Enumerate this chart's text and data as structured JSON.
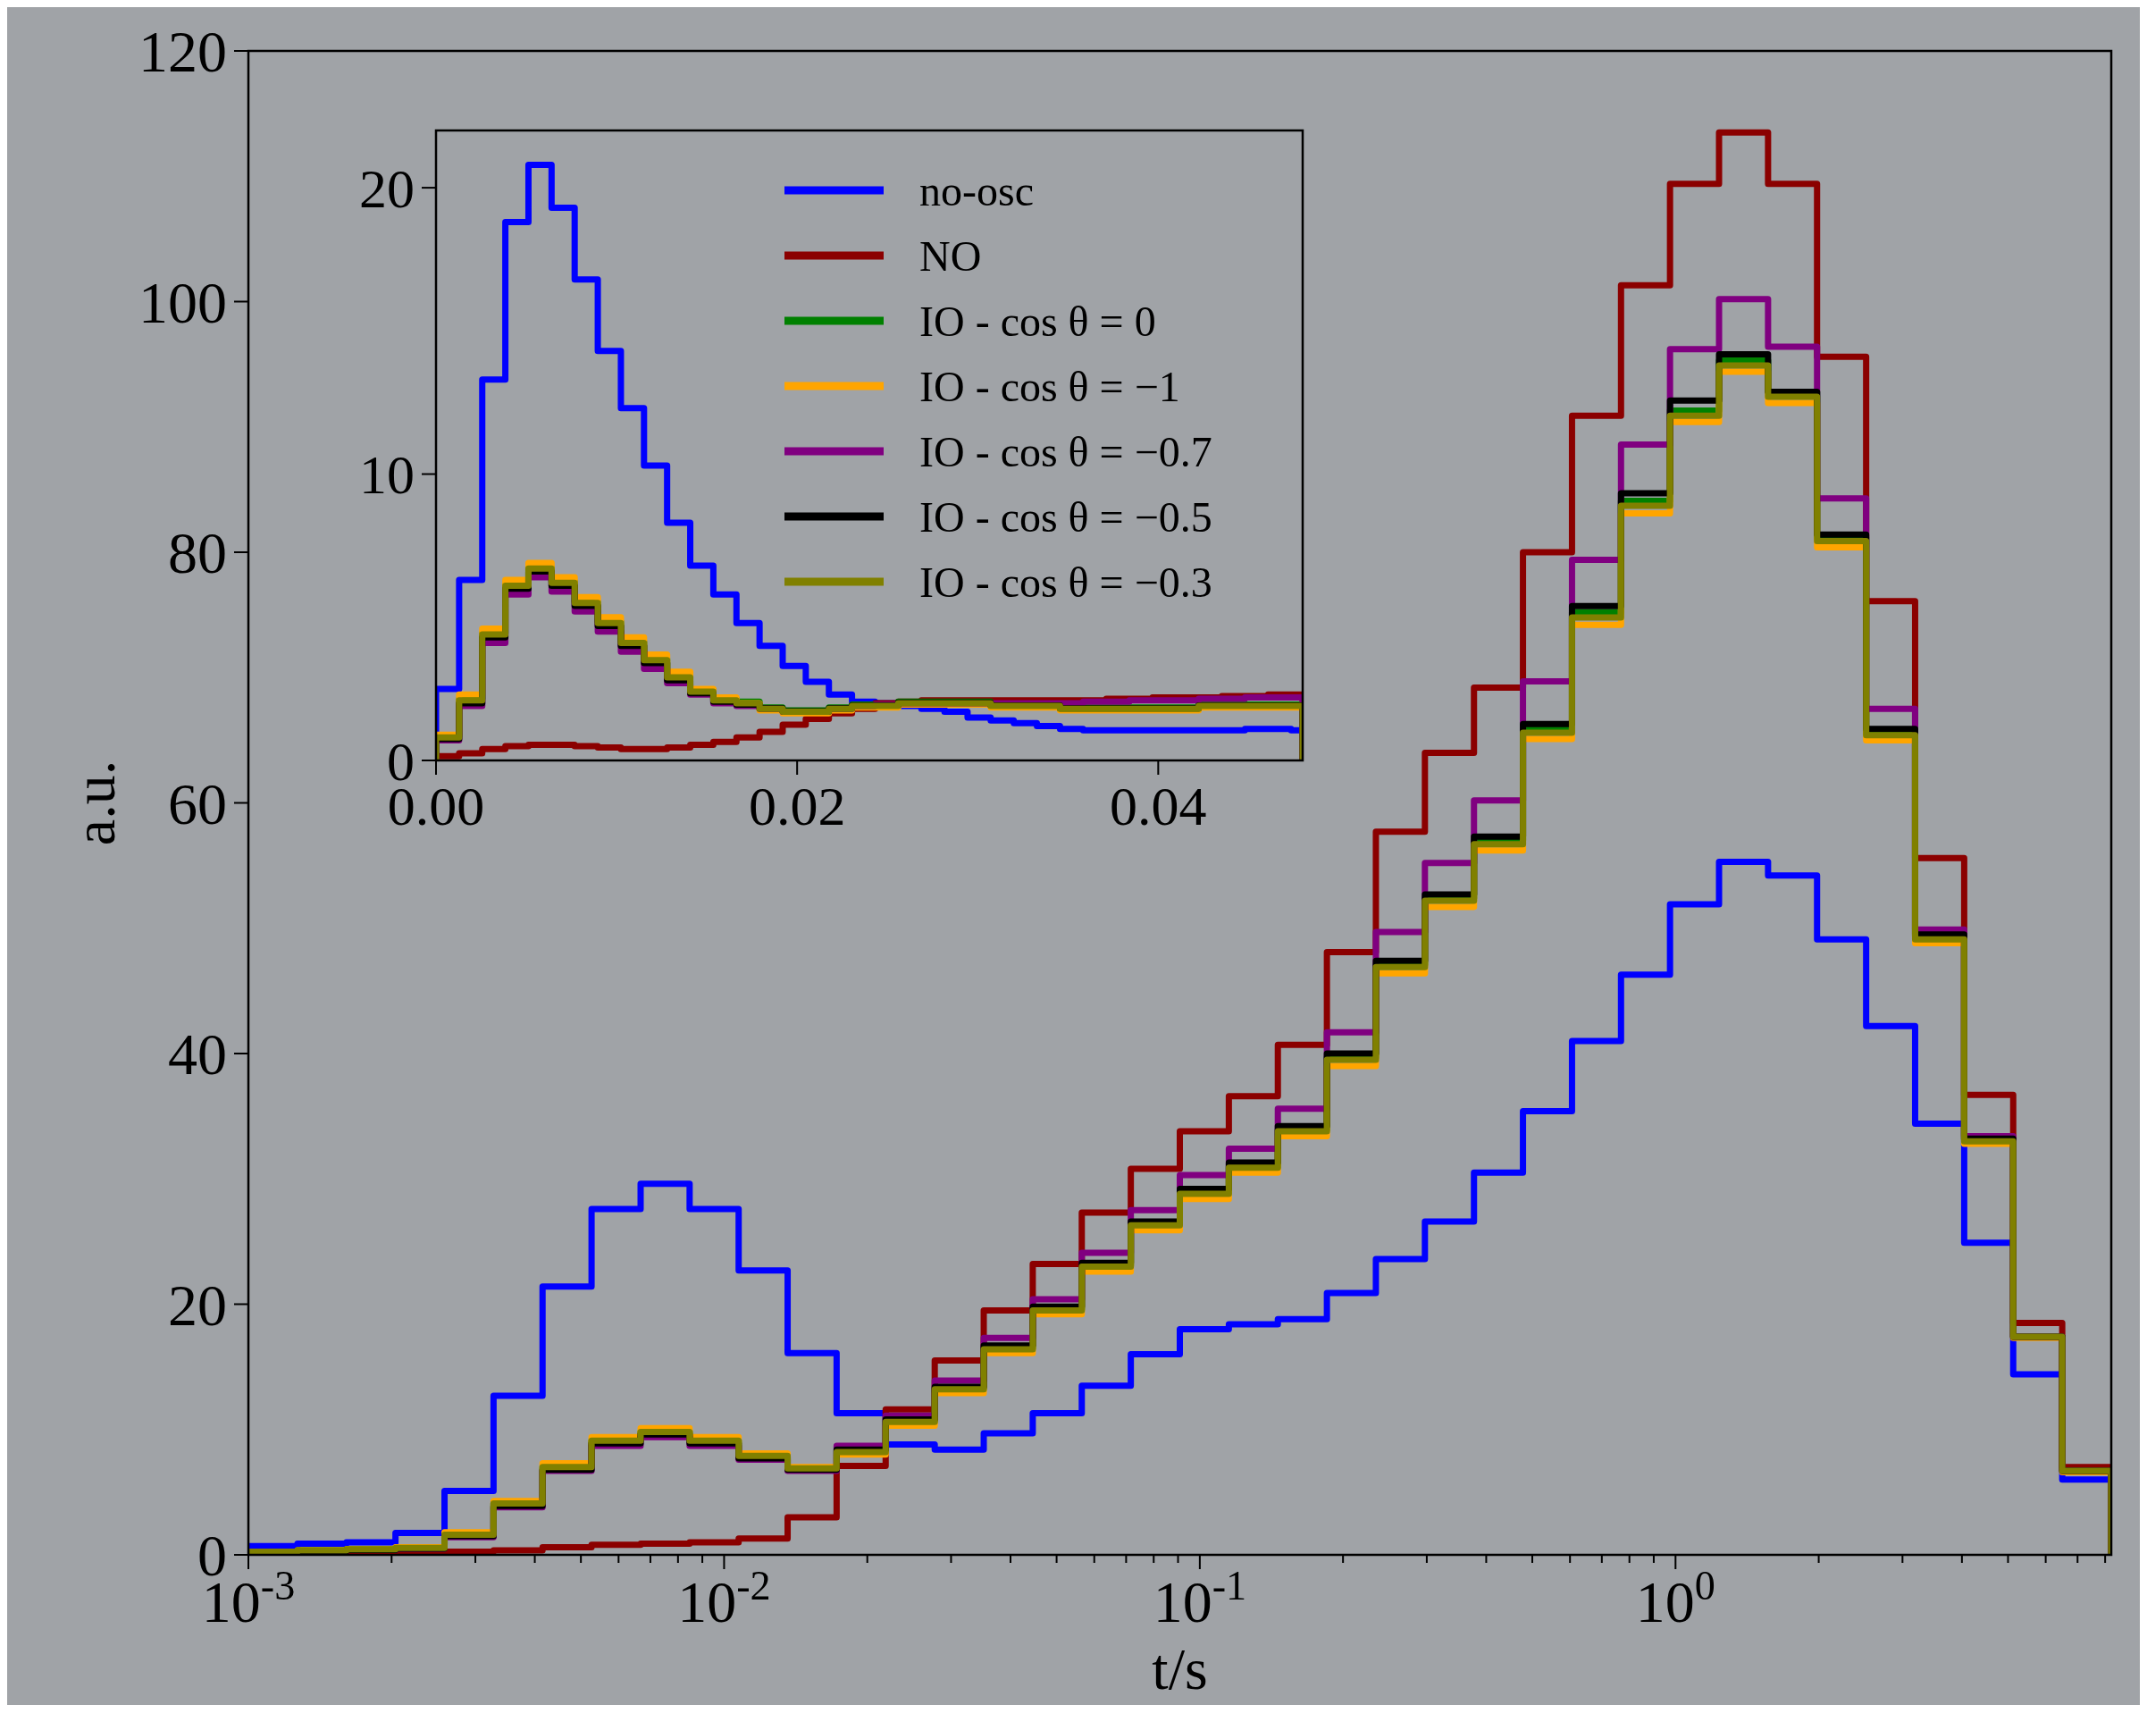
{
  "chart_data": [
    {
      "type": "histogram",
      "xlabel": "t/s",
      "ylabel": "a.u.",
      "log": "x",
      "legend": false,
      "bins": [
        0.001,
        0.001268,
        0.001607,
        0.002038,
        0.002584,
        0.003276,
        0.004153,
        0.005265,
        0.006676,
        0.008463,
        0.01073,
        0.0136,
        0.01724,
        0.02186,
        0.02772,
        0.03514,
        0.04455,
        0.05648,
        0.07161,
        0.09078,
        0.1151,
        0.1459,
        0.185,
        0.2345,
        0.2973,
        0.377,
        0.4779,
        0.6059,
        0.7681,
        0.9737,
        1.2345,
        1.565,
        1.984,
        2.516,
        3.189,
        4.044,
        5.127,
        6.5,
        8.241
      ],
      "xlim": [
        0.001,
        8.241
      ],
      "xticks": [
        {
          "value": 0.001,
          "label": "10$^{-3}$"
        },
        {
          "value": 0.002,
          "label": null
        },
        {
          "value": 0.003,
          "label": null
        },
        {
          "value": 0.004,
          "label": null
        },
        {
          "value": 0.005,
          "label": null
        },
        {
          "value": 0.006,
          "label": null
        },
        {
          "value": 0.007,
          "label": null
        },
        {
          "value": 0.008,
          "label": null
        },
        {
          "value": 0.009,
          "label": null
        },
        {
          "value": 0.01,
          "label": "10$^{-2}$"
        },
        {
          "value": 0.02,
          "label": null
        },
        {
          "value": 0.03,
          "label": null
        },
        {
          "value": 0.04,
          "label": null
        },
        {
          "value": 0.05,
          "label": null
        },
        {
          "value": 0.06,
          "label": null
        },
        {
          "value": 0.07,
          "label": null
        },
        {
          "value": 0.08,
          "label": null
        },
        {
          "value": 0.09,
          "label": null
        },
        {
          "value": 0.1,
          "label": "10$^{-1}$"
        },
        {
          "value": 0.2,
          "label": null
        },
        {
          "value": 0.3,
          "label": null
        },
        {
          "value": 0.4,
          "label": null
        },
        {
          "value": 0.5,
          "label": null
        },
        {
          "value": 0.6,
          "label": null
        },
        {
          "value": 0.7,
          "label": null
        },
        {
          "value": 0.8,
          "label": null
        },
        {
          "value": 0.9,
          "label": null
        },
        {
          "value": 1,
          "label": "10$^{0}$"
        },
        {
          "value": 2,
          "label": null
        },
        {
          "value": 3,
          "label": null
        },
        {
          "value": 4,
          "label": null
        },
        {
          "value": 5,
          "label": null
        },
        {
          "value": 6,
          "label": null
        },
        {
          "value": 7,
          "label": null
        },
        {
          "value": 8,
          "label": null
        }
      ],
      "ylim": [
        0,
        120
      ],
      "yticks": [
        0,
        20,
        40,
        60,
        80,
        100,
        120
      ],
      "series": [
        {
          "color": "#0000ff",
          "values": [
            0.7,
            0.9,
            1.0,
            1.75,
            5.1,
            12.7,
            21.4,
            27.6,
            29.6,
            27.6,
            22.7,
            16.1,
            11.3,
            8.8,
            8.4,
            9.7,
            11.3,
            13.5,
            16.0,
            18.0,
            18.4,
            18.8,
            20.9,
            23.6,
            26.6,
            30.5,
            35.4,
            41.0,
            46.3,
            51.9,
            55.3,
            54.2,
            49.1,
            42.2,
            34.4,
            24.9,
            14.4,
            6.0
          ]
        },
        {
          "color": "#8b0000",
          "values": [
            0.1,
            0.1,
            0.15,
            0.2,
            0.25,
            0.35,
            0.6,
            0.8,
            0.9,
            1.0,
            1.3,
            3.0,
            7.1,
            11.6,
            15.5,
            19.5,
            23.2,
            27.3,
            30.8,
            33.8,
            36.6,
            40.7,
            48.1,
            57.7,
            64.0,
            69.2,
            80.0,
            90.9,
            101.3,
            109.4,
            113.5,
            109.4,
            95.6,
            76.1,
            55.6,
            36.7,
            18.5,
            7.0
          ]
        },
        {
          "color": "#008000",
          "values": [
            0.25,
            0.35,
            0.45,
            0.55,
            1.6,
            4.1,
            7.0,
            9.1,
            9.8,
            9.1,
            7.9,
            6.9,
            8.3,
            10.7,
            13.3,
            16.5,
            19.6,
            23.1,
            26.4,
            28.9,
            31.0,
            33.9,
            39.7,
            47.1,
            52.4,
            57.0,
            65.9,
            75.2,
            84.1,
            91.3,
            95.3,
            92.8,
            81.2,
            65.7,
            49.3,
            33.1,
            17.4,
            6.7
          ]
        },
        {
          "color": "#ffa500",
          "values": [
            0.25,
            0.35,
            0.45,
            0.6,
            1.8,
            4.3,
            7.3,
            9.4,
            10.1,
            9.4,
            8.1,
            7.0,
            8.0,
            10.3,
            12.9,
            16.1,
            19.2,
            22.6,
            25.9,
            28.4,
            30.5,
            33.4,
            39.0,
            46.4,
            51.7,
            56.2,
            65.1,
            74.2,
            83.1,
            90.4,
            94.4,
            91.9,
            80.4,
            65.0,
            48.8,
            32.8,
            17.3,
            6.6
          ]
        },
        {
          "color": "#800080",
          "values": [
            0.2,
            0.3,
            0.4,
            0.5,
            1.4,
            3.8,
            6.7,
            8.7,
            9.4,
            8.7,
            7.6,
            6.7,
            8.7,
            11.1,
            13.9,
            17.3,
            20.4,
            24.1,
            27.5,
            30.3,
            32.4,
            35.6,
            41.7,
            49.7,
            55.2,
            60.2,
            69.7,
            79.4,
            88.6,
            96.2,
            100.2,
            96.4,
            84.3,
            67.5,
            49.9,
            33.4,
            17.4,
            6.7
          ]
        },
        {
          "color": "#000000",
          "values": [
            0.2,
            0.3,
            0.4,
            0.5,
            1.5,
            3.9,
            6.8,
            8.9,
            9.6,
            8.9,
            7.7,
            6.8,
            8.4,
            10.8,
            13.4,
            16.7,
            19.8,
            23.3,
            26.6,
            29.2,
            31.3,
            34.2,
            40.0,
            47.4,
            52.7,
            57.3,
            66.3,
            75.7,
            84.7,
            92.1,
            95.8,
            92.8,
            81.4,
            65.9,
            49.5,
            33.2,
            17.4,
            6.7
          ]
        },
        {
          "color": "#808000",
          "values": [
            0.25,
            0.35,
            0.45,
            0.55,
            1.6,
            4.1,
            7.0,
            9.1,
            9.8,
            9.1,
            7.9,
            6.9,
            8.2,
            10.6,
            13.2,
            16.4,
            19.5,
            23.0,
            26.3,
            28.8,
            30.9,
            33.8,
            39.5,
            46.9,
            52.2,
            56.7,
            65.6,
            74.8,
            83.7,
            90.9,
            94.9,
            92.4,
            80.9,
            65.4,
            49.1,
            33.0,
            17.4,
            6.7
          ]
        }
      ]
    },
    {
      "type": "histogram",
      "legend": "top right",
      "bins": [
        0,
        0.00128,
        0.00256,
        0.00384,
        0.00512,
        0.0064,
        0.00768,
        0.00896,
        0.01024,
        0.01152,
        0.0128,
        0.01408,
        0.01536,
        0.01664,
        0.01792,
        0.0192,
        0.02048,
        0.02176,
        0.02304,
        0.02432,
        0.0256,
        0.02688,
        0.02816,
        0.02944,
        0.03072,
        0.032,
        0.03328,
        0.03456,
        0.03584,
        0.03712,
        0.0384,
        0.03968,
        0.04096,
        0.04224,
        0.04352,
        0.0448,
        0.04608,
        0.04736,
        0.048
      ],
      "xlim": [
        0,
        0.048
      ],
      "xticks": [
        {
          "value": 0,
          "label": "0.00"
        },
        {
          "value": 0.02,
          "label": "0.02"
        },
        {
          "value": 0.04,
          "label": "0.04"
        }
      ],
      "ylim": [
        0,
        22
      ],
      "yticks": [
        0,
        10,
        20
      ],
      "series": [
        {
          "name": "no-osc",
          "color": "#0000ff",
          "values": [
            2.5,
            6.3,
            13.3,
            18.8,
            20.8,
            19.3,
            16.8,
            14.3,
            12.3,
            10.3,
            8.3,
            6.8,
            5.8,
            4.8,
            4.0,
            3.3,
            2.75,
            2.3,
            2.05,
            2.0,
            1.9,
            1.8,
            1.7,
            1.5,
            1.4,
            1.3,
            1.2,
            1.1,
            1.05,
            1.05,
            1.05,
            1.05,
            1.05,
            1.05,
            1.05,
            1.1,
            1.1,
            1.05
          ]
        },
        {
          "name": "NO",
          "color": "#8b0000",
          "values": [
            0.15,
            0.25,
            0.4,
            0.5,
            0.55,
            0.55,
            0.5,
            0.45,
            0.4,
            0.4,
            0.45,
            0.55,
            0.65,
            0.8,
            1.0,
            1.25,
            1.45,
            1.65,
            1.8,
            2.0,
            2.05,
            2.1,
            2.1,
            2.1,
            2.1,
            2.1,
            2.1,
            2.1,
            2.1,
            2.15,
            2.15,
            2.2,
            2.2,
            2.2,
            2.25,
            2.25,
            2.3,
            2.3
          ]
        },
        {
          "name": "IO - cos θ = 0",
          "color": "#008000",
          "values": [
            0.85,
            2.15,
            4.45,
            6.15,
            6.75,
            6.25,
            5.55,
            4.85,
            4.15,
            3.55,
            2.95,
            2.45,
            2.15,
            2.05,
            1.85,
            1.75,
            1.75,
            1.85,
            1.95,
            1.95,
            2.05,
            2.05,
            2.05,
            2.05,
            1.95,
            1.95,
            1.95,
            1.85,
            1.85,
            1.85,
            1.85,
            1.85,
            1.85,
            1.95,
            1.95,
            1.95,
            1.95,
            1.95
          ]
        },
        {
          "name": "IO - cos θ = −1",
          "color": "#ffa500",
          "values": [
            0.9,
            2.3,
            4.6,
            6.3,
            6.9,
            6.4,
            5.7,
            5.0,
            4.3,
            3.7,
            3.1,
            2.5,
            2.2,
            2.0,
            1.75,
            1.65,
            1.65,
            1.75,
            1.85,
            1.85,
            1.95,
            1.95,
            1.95,
            1.95,
            1.85,
            1.85,
            1.85,
            1.75,
            1.75,
            1.75,
            1.75,
            1.75,
            1.75,
            1.85,
            1.85,
            1.85,
            1.85,
            1.85
          ]
        },
        {
          "name": "IO - cos θ = −0.7",
          "color": "#800080",
          "values": [
            0.7,
            1.9,
            4.1,
            5.8,
            6.4,
            5.9,
            5.2,
            4.5,
            3.8,
            3.2,
            2.7,
            2.3,
            2.0,
            1.9,
            1.8,
            1.7,
            1.7,
            1.8,
            1.9,
            1.95,
            2.0,
            2.0,
            2.0,
            2.0,
            2.0,
            2.0,
            2.0,
            2.0,
            2.05,
            2.05,
            2.1,
            2.1,
            2.1,
            2.15,
            2.15,
            2.2,
            2.2,
            2.2
          ]
        },
        {
          "name": "IO - cos θ = −0.5",
          "color": "#000000",
          "values": [
            0.75,
            2.0,
            4.3,
            6.0,
            6.6,
            6.1,
            5.4,
            4.7,
            4.0,
            3.4,
            2.8,
            2.35,
            2.05,
            1.95,
            1.82,
            1.72,
            1.72,
            1.82,
            1.92,
            1.92,
            2.02,
            2.02,
            2.02,
            2.02,
            1.92,
            1.92,
            1.92,
            1.82,
            1.82,
            1.82,
            1.82,
            1.82,
            1.82,
            1.92,
            1.92,
            1.92,
            1.92,
            1.92
          ]
        },
        {
          "name": "IO - cos θ = −0.3",
          "color": "#808000",
          "values": [
            0.8,
            2.1,
            4.4,
            6.1,
            6.7,
            6.2,
            5.5,
            4.8,
            4.1,
            3.5,
            2.9,
            2.4,
            2.1,
            2.0,
            1.8,
            1.7,
            1.7,
            1.8,
            1.9,
            1.9,
            2.0,
            2.0,
            2.0,
            2.0,
            1.9,
            1.9,
            1.9,
            1.8,
            1.8,
            1.8,
            1.8,
            1.8,
            1.8,
            1.9,
            1.9,
            1.9,
            1.9,
            1.9
          ]
        }
      ]
    }
  ]
}
